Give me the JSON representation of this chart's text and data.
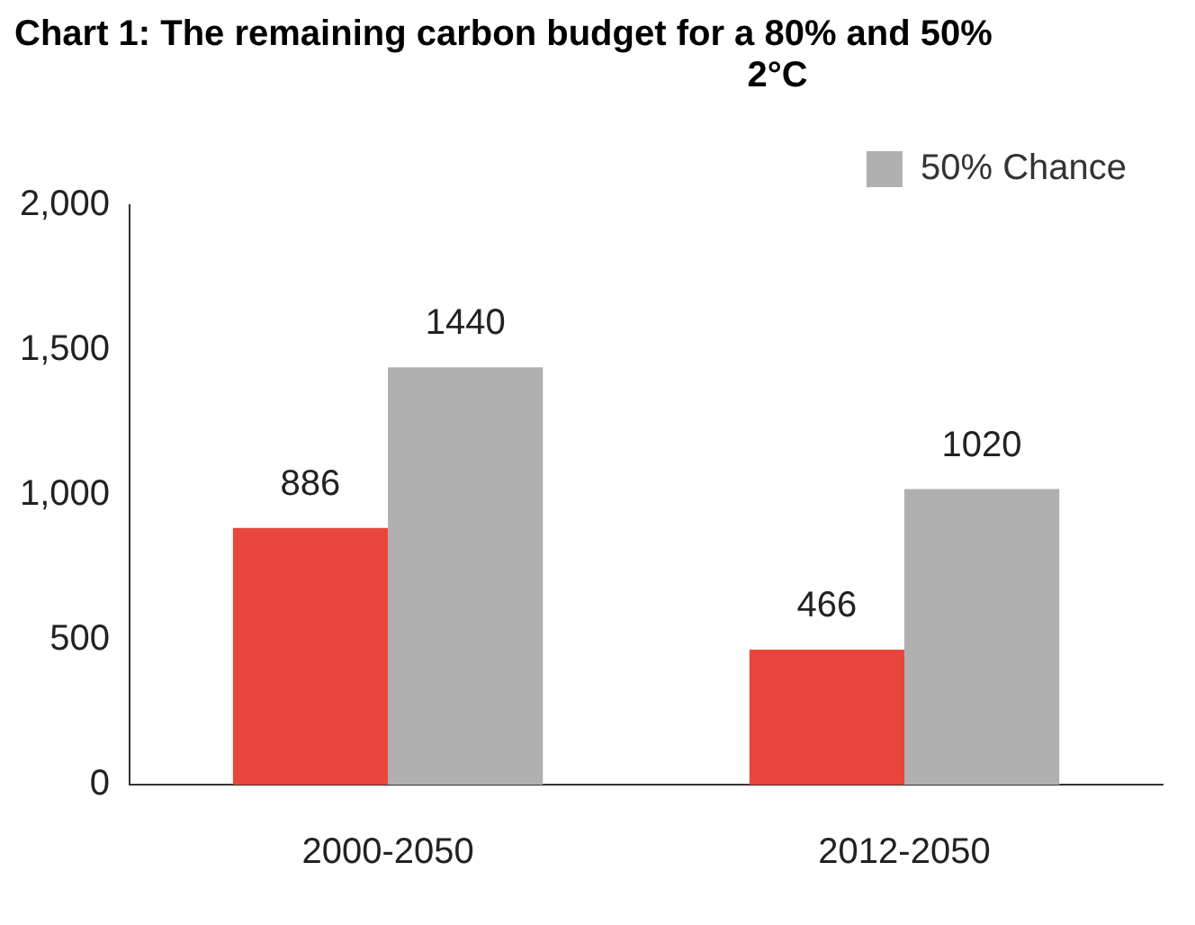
{
  "chart_data": {
    "type": "bar",
    "title": "Chart 1: The remaining carbon budget for a 80% and 50%",
    "subtitle": "2°C",
    "categories": [
      "2000-2050",
      "2012-2050"
    ],
    "series": [
      {
        "color": "#e8453c",
        "values": [
          886,
          466
        ]
      },
      {
        "name": "50% Chance",
        "color": "#b0b0b0",
        "values": [
          1440,
          1020
        ]
      }
    ],
    "ylim": [
      0,
      2000
    ],
    "yticks": [
      {
        "value": 0,
        "label": "0"
      },
      {
        "value": 500,
        "label": "500"
      },
      {
        "value": 1000,
        "label": "1,000"
      },
      {
        "value": 1500,
        "label": "1,500"
      },
      {
        "value": 2000,
        "label": "2,000"
      }
    ],
    "grid": false,
    "legend": "top right",
    "data_labels": true
  }
}
